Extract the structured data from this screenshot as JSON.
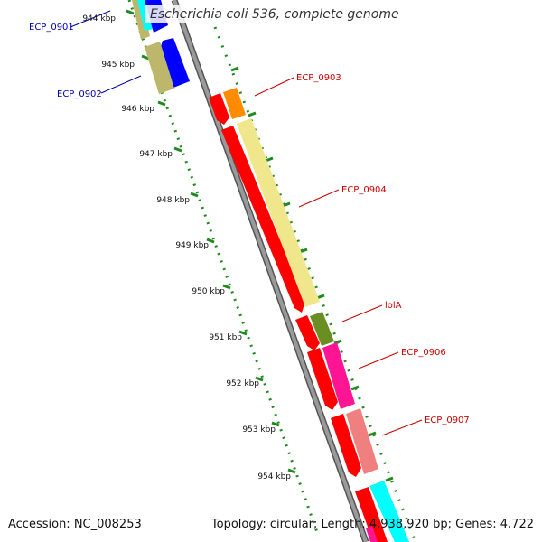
{
  "title": "Escherichia coli 536, complete genome",
  "footer": {
    "accession": "Accession: NC_008253",
    "summary": "Topology: circular; Length: 4,938,920 bp; Genes: 4,722"
  },
  "ticks": [
    {
      "label": "944 kbp"
    },
    {
      "label": "945 kbp"
    },
    {
      "label": "946 kbp"
    },
    {
      "label": "947 kbp"
    },
    {
      "label": "948 kbp"
    },
    {
      "label": "949 kbp"
    },
    {
      "label": "950 kbp"
    },
    {
      "label": "951 kbp"
    },
    {
      "label": "952 kbp"
    },
    {
      "label": "953 kbp"
    },
    {
      "label": "954 kbp"
    }
  ],
  "genes": [
    {
      "label": "ECP_0901",
      "color": "#0000aa"
    },
    {
      "label": "ECP_0902",
      "color": "#0000aa"
    },
    {
      "label": "ECP_0903",
      "color": "#cc0000"
    },
    {
      "label": "ECP_0904",
      "color": "#cc0000"
    },
    {
      "label": "lolA",
      "color": "#cc0000"
    },
    {
      "label": "ECP_0906",
      "color": "#cc0000"
    },
    {
      "label": "ECP_0907",
      "color": "#cc0000"
    }
  ],
  "colors": {
    "backbone": "#8a8a8a",
    "tick": "#1f8a1f",
    "cds_forward": "#ff0000",
    "cds_reverse": "#0000ff",
    "feature_gold": "#f0e68c",
    "feature_olive": "#6b8e23",
    "feature_pink": "#ff1493",
    "feature_salmon": "#f08080",
    "feature_orange": "#ff8c00",
    "feature_cyan": "#00ffff",
    "feature_khaki": "#bdb76b"
  }
}
